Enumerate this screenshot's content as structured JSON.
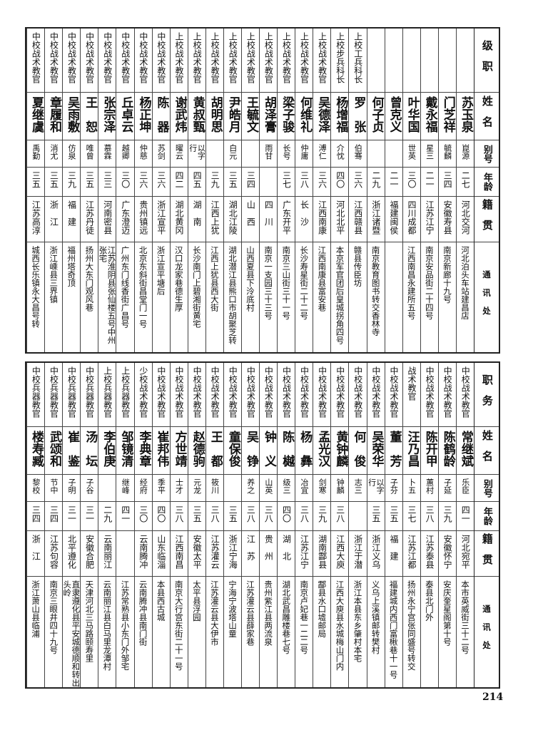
{
  "top_table": {
    "headers": [
      "级职",
      "姓名",
      "别号",
      "年龄",
      "籍贯",
      "通讯处"
    ],
    "rows": [
      {
        "title": "",
        "name": "苏玉泉",
        "alias": "崑源",
        "age": "二七",
        "native": "河北交河",
        "address": "河北泊头车站建昌店"
      },
      {
        "title": "",
        "name": "门芝祥",
        "alias": "毓麟",
        "age": "三四",
        "native": "安徽寿县",
        "address": "南京新廊十九号"
      },
      {
        "title": "",
        "name": "戴永福",
        "alias": "星三",
        "age": "二一",
        "native": "江苏江宁",
        "address": "南京安品街二十四号"
      },
      {
        "title": "",
        "name": "叶华国",
        "alias": "世英",
        "age": "三〇",
        "native": "四川成都",
        "address": "江西南昌永建所五号"
      },
      {
        "title": "",
        "name": "曾克义",
        "alias": "",
        "age": "二一",
        "native": "福建闽侯",
        "address": ""
      },
      {
        "title": "",
        "name": "何子贞",
        "alias": "",
        "age": "二九",
        "native": "浙江诸暨",
        "address": "南京教育图书转交香林寺"
      },
      {
        "title": "上校工兵科长",
        "name": "罗　张",
        "alias": "伯骞",
        "age": "三六",
        "native": "江西赣县",
        "address": "赣县传臣坊"
      },
      {
        "title": "上校步兵科长",
        "name": "杨增福",
        "alias": "介忱",
        "age": "四〇",
        "native": "河北北平",
        "address": "本京军官团后皇城拐角四号"
      },
      {
        "title": "上校战术教官",
        "name": "吴德泽",
        "alias": "溥仁",
        "age": "三六",
        "native": "江西南康",
        "address": "江西南康县富安巷"
      },
      {
        "title": "上校战术教官",
        "name": "何维礼",
        "alias": "仲庸",
        "age": "三八",
        "native": "长　沙",
        "address": "长沙寿星街二十二号"
      },
      {
        "title": "上校战术教官",
        "name": "梁子骏",
        "alias": "长号",
        "age": "三七",
        "native": "广东开平",
        "address": "南京三山街三十一号"
      },
      {
        "title": "上校战术教官",
        "name": "胡泽膏",
        "alias": "雨甘",
        "age": "",
        "native": "四　川",
        "address": "南京一支园三十三号"
      },
      {
        "title": "上校战术教官",
        "name": "王毓文",
        "alias": "",
        "age": "三四",
        "native": "山　西",
        "address": "山西夏县下泠底村"
      },
      {
        "title": "上校战术教官",
        "name": "尹皓月",
        "alias": "白元",
        "age": "三五",
        "native": "湖北江陵",
        "address": "湖北潜江县熊口市胡聚芝转"
      },
      {
        "title": "上校战术教官",
        "name": "胡明思",
        "alias": "",
        "age": "三九",
        "native": "江西上犹",
        "address": "江西上犹县西大街"
      },
      {
        "title": "上校战术教官",
        "name": "黄叔甄",
        "alias": "以字行",
        "age": "四五",
        "native": "湖　南",
        "address": "长沙南门上碧湘街黄宅"
      },
      {
        "title": "上校战术教官",
        "name": "谢武炜",
        "alias": "曜云",
        "age": "四二",
        "native": "湖北黄冈",
        "address": "汉口龙家巷德生厚"
      },
      {
        "title": "中校战术教官",
        "name": "陈　器",
        "alias": "苏剑",
        "age": "三六",
        "native": "浙江宣平",
        "address": "浙江宣平塘后"
      },
      {
        "title": "中校战术教官",
        "name": "杨正坤",
        "alias": "仲慈",
        "age": "三六",
        "native": "贵州镇远",
        "address": "北京东斜街昌堂门一号"
      },
      {
        "title": "中校战术教官",
        "name": "丘卓云",
        "alias": "越卿",
        "age": "三〇",
        "native": "广东澄迈",
        "address": "广州东门线香街广昌号"
      },
      {
        "title": "中校战术教官",
        "name": "张宗泽",
        "alias": "慕霖",
        "age": "三三",
        "native": "河南密县",
        "address": "江苏淮阴县张仙楼五号中州张宅"
      },
      {
        "title": "中校战术教官",
        "name": "王　恕",
        "alias": "唯曾",
        "age": "三五",
        "native": "江苏丹徒",
        "address": "扬州大东门观风巷"
      },
      {
        "title": "中校战术教官",
        "name": "吴雨敷",
        "alias": "仿泉",
        "age": "三九",
        "native": "福　建",
        "address": "福州塔奇顶"
      },
      {
        "title": "中校战术教官",
        "name": "章履和",
        "alias": "消尤",
        "age": "三五",
        "native": "浙　江",
        "address": "浙江嵊县三界镇"
      },
      {
        "title": "中校战术教官",
        "name": "夏继虞",
        "alias": "禹勤",
        "age": "三五",
        "native": "江苏高淳",
        "address": "城西长乐镇永大昌号转"
      }
    ]
  },
  "bottom_table": {
    "headers": [
      "职务",
      "姓名",
      "别号",
      "年龄",
      "籍贯",
      "通讯处"
    ],
    "rows": [
      {
        "title": "中校战术教官",
        "name": "常继斌",
        "alias": "乐臣",
        "age": "四一",
        "native": "河北宛平",
        "address": "本市英威街三十二号"
      },
      {
        "title": "中校战术教官",
        "name": "陈鹤龄",
        "alias": "子延",
        "age": "三九",
        "native": "安徽怀宁",
        "address": "安庆奎星阁第十号"
      },
      {
        "title": "中校战术教官",
        "name": "陈开甲",
        "alias": "蕙村",
        "age": "三八",
        "native": "江苏泰县",
        "address": "泰县北门外"
      },
      {
        "title": "战术教官",
        "name": "汪乃昌",
        "alias": "卜五",
        "age": "三七",
        "native": "江苏江都",
        "address": "扬州永宁宫张同盛号转交"
      },
      {
        "title": "中校战术教官",
        "name": "董　芳",
        "alias": "子芬",
        "age": "三五",
        "native": "福　建",
        "address": "福建城内西门富楸巷十一号"
      },
      {
        "title": "中校战术教官",
        "name": "吴荣华",
        "alias": "以字行",
        "age": "三五",
        "native": "浙江义乌",
        "address": "义乌上溪镇邮转樊村"
      },
      {
        "title": "中校战术教官",
        "name": "何　俊",
        "alias": "志三",
        "age": "",
        "native": "浙江于潜",
        "address": "浙江本县东乡肇村本宅"
      },
      {
        "title": "中校战术教官",
        "name": "黄钟麟",
        "alias": "钟麟",
        "age": "三八",
        "native": "江西大庾",
        "address": "江西大庾县水城梅山门内"
      },
      {
        "title": "中校战术教官",
        "name": "孟光汉",
        "alias": "剑寒",
        "age": "三九",
        "native": "湖南酃县",
        "address": "酃县水口墟邮局"
      },
      {
        "title": "中校战术教官",
        "name": "杨　彝",
        "alias": "冶宜",
        "age": "三八",
        "native": "江苏江宁",
        "address": "南京卢妃巷一二二号"
      },
      {
        "title": "中校战术教官",
        "name": "陈　樾",
        "alias": "级三",
        "age": "四〇",
        "native": "湖　北",
        "address": "湖北武昌雕楼巷七号"
      },
      {
        "title": "中校战术教官",
        "name": "钟　义",
        "alias": "山英",
        "age": "三八",
        "native": "贵　州",
        "address": "贵州紫江县两流泉"
      },
      {
        "title": "中校战术教官",
        "name": "吴　铮",
        "alias": "养之",
        "age": "三八",
        "native": "江　苏",
        "address": "江苏灌云县薛家巷"
      },
      {
        "title": "中校战术教官",
        "name": "童保俊",
        "alias": "",
        "age": "三五",
        "native": "浙江宁海",
        "address": "宁海宁波塔山童"
      },
      {
        "title": "中校战术教官",
        "name": "王　都",
        "alias": "筱川",
        "age": "三八",
        "native": "江苏灌云",
        "address": "江苏灌云县大伊市"
      },
      {
        "title": "中校战术教官",
        "name": "赵德驹",
        "alias": "元龙",
        "age": "三五",
        "native": "安徽太平",
        "address": "太平县浮园"
      },
      {
        "title": "中校战术教官",
        "name": "方世靖",
        "alias": "士才",
        "age": "三八",
        "native": "江西南昌",
        "address": "南京大行宫东街二十一号"
      },
      {
        "title": "中校战术教官",
        "name": "崔邦伟",
        "alias": "季平",
        "age": "四〇",
        "native": "山东临淄",
        "address": "本县西古城"
      },
      {
        "title": "少校战术教官",
        "name": "李典章",
        "alias": "经府",
        "age": "三〇",
        "native": "云南腾冲",
        "address": "云南腾冲县南门街"
      },
      {
        "title": "上校兵器教官",
        "name": "邹镜清",
        "alias": "继峰",
        "age": "四一",
        "native": "",
        "address": "江苏常熟县小东门外邹宅"
      },
      {
        "title": "上校兵器教官",
        "name": "李伯庚",
        "alias": "",
        "age": "二九",
        "native": "云南丽江",
        "address": "云南丽江县白马里龙潭村"
      },
      {
        "title": "中校兵器教官",
        "name": "汤　坛",
        "alias": "子谷",
        "age": "三一",
        "native": "安徽合肥",
        "address": "天津河北三马路颐寿里"
      },
      {
        "title": "中校兵器教官",
        "name": "崔　鉴",
        "alias": "子明",
        "age": "三一",
        "native": "北平遵化",
        "address": "直隶遵化县平安城德顺和转出头岭"
      },
      {
        "title": "中校兵器教官",
        "name": "武颂和",
        "alias": "节中",
        "age": "三四",
        "native": "江苏句容",
        "address": "南京三眼井四十九号"
      },
      {
        "title": "中校兵器教官",
        "name": "楼寿臧",
        "alias": "黎校",
        "age": "三四",
        "native": "浙　江",
        "address": "浙江萧山县临浦"
      }
    ]
  },
  "page_number": "214"
}
